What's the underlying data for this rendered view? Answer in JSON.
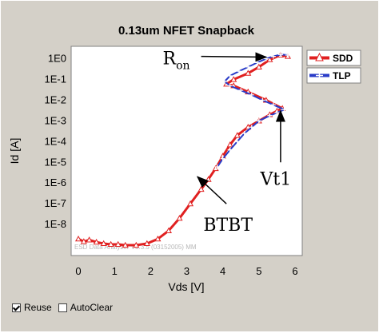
{
  "chart_data": {
    "type": "scatter",
    "title": "0.13um NFET Snapback",
    "xlabel": "Vds [V]",
    "ylabel": "Id [A]",
    "xlim": [
      -0.2,
      6.2
    ],
    "ylim_log10": [
      -9.5,
      0.6
    ],
    "x_ticks": [
      0,
      1,
      2,
      3,
      4,
      5,
      6
    ],
    "y_ticks": [
      {
        "label": "1E0",
        "exp": 0
      },
      {
        "label": "1E-1",
        "exp": -1
      },
      {
        "label": "1E-2",
        "exp": -2
      },
      {
        "label": "1E-3",
        "exp": -3
      },
      {
        "label": "1E-4",
        "exp": -4
      },
      {
        "label": "1E-5",
        "exp": -5
      },
      {
        "label": "1E-6",
        "exp": -6
      },
      {
        "label": "1E-7",
        "exp": -7
      },
      {
        "label": "1E-8",
        "exp": -8
      }
    ],
    "log_y": true,
    "grid": false,
    "legend": "right",
    "series": [
      {
        "name": "SDD",
        "color": "#e02020",
        "marker": "triangle",
        "points": [
          [
            0.0,
            2e-09
          ],
          [
            0.15,
            1.5e-09
          ],
          [
            0.3,
            1.8e-09
          ],
          [
            0.5,
            1.4e-09
          ],
          [
            0.7,
            1.2e-09
          ],
          [
            0.9,
            1.1e-09
          ],
          [
            1.1,
            1.1e-09
          ],
          [
            1.3,
            1e-09
          ],
          [
            1.6,
            1e-09
          ],
          [
            1.9,
            1.2e-09
          ],
          [
            2.2,
            2e-09
          ],
          [
            2.5,
            5e-09
          ],
          [
            2.8,
            2e-08
          ],
          [
            3.1,
            1e-07
          ],
          [
            3.4,
            5e-07
          ],
          [
            3.6,
            1.5e-06
          ],
          [
            3.8,
            5e-06
          ],
          [
            4.0,
            2e-05
          ],
          [
            4.2,
            7e-05
          ],
          [
            4.4,
            0.0002
          ],
          [
            4.7,
            0.0005
          ],
          [
            5.0,
            0.001
          ],
          [
            5.3,
            0.002
          ],
          [
            5.5,
            0.003
          ],
          [
            5.65,
            0.004
          ],
          [
            5.2,
            0.01
          ],
          [
            4.7,
            0.025
          ],
          [
            4.3,
            0.05
          ],
          [
            4.1,
            0.06
          ],
          [
            4.3,
            0.1
          ],
          [
            4.7,
            0.2
          ],
          [
            5.0,
            0.4
          ],
          [
            5.3,
            0.9
          ],
          [
            5.6,
            1.5
          ],
          [
            5.8,
            1.3
          ]
        ]
      },
      {
        "name": "TLP",
        "color": "#2a3cc8",
        "marker": "cross",
        "points": [
          [
            3.85,
            6e-06
          ],
          [
            4.0,
            1.5e-05
          ],
          [
            4.2,
            4e-05
          ],
          [
            4.4,
            0.0001
          ],
          [
            4.6,
            0.00025
          ],
          [
            4.8,
            0.0005
          ],
          [
            5.0,
            0.001
          ],
          [
            5.3,
            0.0018
          ],
          [
            5.5,
            0.0025
          ],
          [
            5.7,
            0.0035
          ],
          [
            5.4,
            0.006
          ],
          [
            5.1,
            0.01
          ],
          [
            4.8,
            0.018
          ],
          [
            4.5,
            0.03
          ],
          [
            4.2,
            0.05
          ],
          [
            4.05,
            0.08
          ],
          [
            4.2,
            0.15
          ],
          [
            4.45,
            0.25
          ],
          [
            4.7,
            0.4
          ],
          [
            4.95,
            0.65
          ],
          [
            5.2,
            1.0
          ],
          [
            5.4,
            1.3
          ],
          [
            5.6,
            1.6
          ],
          [
            5.8,
            1.5
          ]
        ]
      }
    ],
    "annotations": [
      {
        "text": "R",
        "sub": "on",
        "arrow_from": [
          3.4,
          1.3
        ],
        "arrow_to": [
          5.2,
          1.2
        ]
      },
      {
        "text": "Vt1",
        "arrow_from": [
          5.6,
          1e-05
        ],
        "arrow_to": [
          5.6,
          0.003
        ]
      },
      {
        "text": "BTBT",
        "arrow_from": [
          4.1,
          1e-07
        ],
        "arrow_to": [
          3.3,
          2e-06
        ]
      }
    ],
    "watermark": "ESD Data Analyzer V3.3.5 (03152005) MM"
  },
  "controls": {
    "reuse_label": "Reuse",
    "reuse_checked": true,
    "autoclear_label": "AutoClear",
    "autoclear_checked": false
  }
}
